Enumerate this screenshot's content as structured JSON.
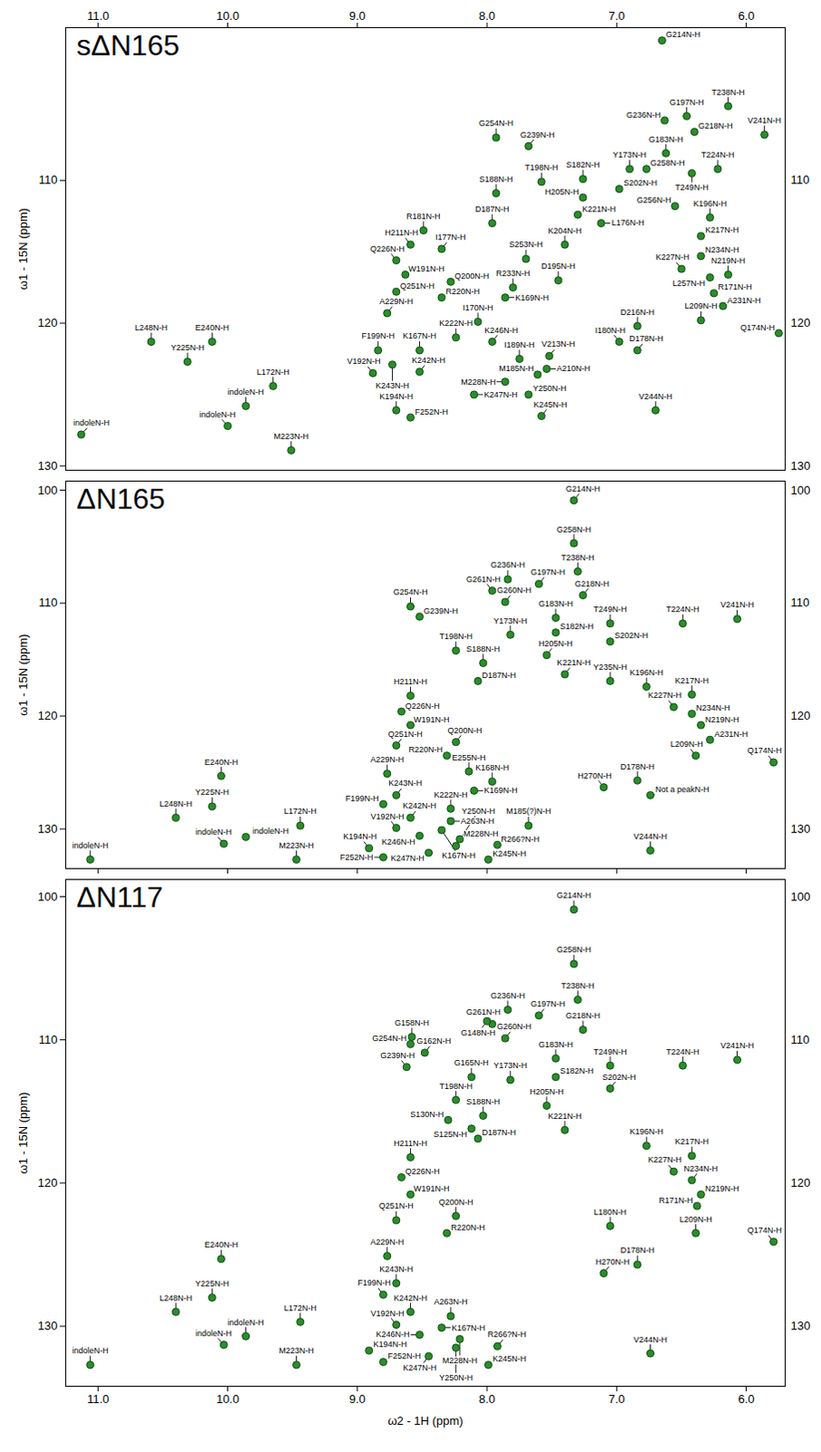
{
  "chart_data": [
    {
      "type": "scatter",
      "title": "sΔN165",
      "ylabel": "ω1 - 15N (ppm)",
      "color": "#2e8b2e",
      "marker": "circle",
      "xlim": [
        11.25,
        5.7
      ],
      "xticks": [
        11,
        10,
        9,
        8,
        7,
        6
      ],
      "ylim": [
        99.3,
        130.3
      ],
      "yticks": [
        110,
        120,
        130
      ],
      "labels": [
        "G214N-H",
        "G197N-H",
        "G236N-H",
        "T238N-H",
        "G218N-H",
        "G254N-H",
        "G239N-H",
        "Y173N-H",
        "G183N-H",
        "G258N-H",
        "T249N-H",
        "T224N-H",
        "V241N-H",
        "T198N-H",
        "S182N-H",
        "S188N-H",
        "H205N-H",
        "S202N-H",
        "D187N-H",
        "K221N-H",
        "L176N-H",
        "K196N-H",
        "K217N-H",
        "R181N-H",
        "H211N-H",
        "I177N-H",
        "Q226N-H",
        "W191N-H",
        "Q251N-H",
        "Q200N-H",
        "R220N-H",
        "N234N-H",
        "N219N-H",
        "R171N-H",
        "L257N-H",
        "A231N-H",
        "L209N-H",
        "Q174N-H",
        "D216N-H",
        "D178N-H",
        "I180N-H",
        "A229N-H",
        "I170N-H",
        "K222N-H",
        "K246N-H",
        "K167N-H",
        "K169N-H",
        "L248N-H",
        "E240N-H",
        "Y225N-H",
        "F199N-H",
        "K243N-H",
        "V192N-H",
        "K242N-H",
        "L172N-H",
        "M185N-H",
        "I189N-H",
        "A210N-H",
        "V213N-H",
        "M228N-H",
        "Y250N-H",
        "K247N-H",
        "K194N-H",
        "F252N-H",
        "K245N-H",
        "V244N-H",
        "indoleN-H",
        "indoleN-H",
        "indoleN-H",
        "M223N-H",
        "K204N-H",
        "S253N-H",
        "G256N-H",
        "R233N-H",
        "D195N-H",
        "K227N-H"
      ],
      "x": [
        6.65,
        6.46,
        6.63,
        6.14,
        6.4,
        7.93,
        7.68,
        6.9,
        6.62,
        6.77,
        6.42,
        6.22,
        5.86,
        7.58,
        7.26,
        7.93,
        7.26,
        6.98,
        7.96,
        7.3,
        7.12,
        6.28,
        6.35,
        8.49,
        8.59,
        8.35,
        8.7,
        8.63,
        8.7,
        8.28,
        8.35,
        6.35,
        6.14,
        6.25,
        6.28,
        6.18,
        6.35,
        5.75,
        6.84,
        6.84,
        6.98,
        8.77,
        8.07,
        8.24,
        7.96,
        8.52,
        7.86,
        10.59,
        10.12,
        10.31,
        8.84,
        8.73,
        8.88,
        8.52,
        9.65,
        7.61,
        7.75,
        7.54,
        7.52,
        7.86,
        7.68,
        8.1,
        8.7,
        8.59,
        7.58,
        6.7,
        9.86,
        10.0,
        11.13,
        9.51,
        7.4,
        7.7,
        6.55,
        7.8,
        7.45,
        6.5
      ],
      "y": [
        100.2,
        105.5,
        105.8,
        104.8,
        106.6,
        107.0,
        107.6,
        109.2,
        108.1,
        109.2,
        109.5,
        109.2,
        106.8,
        110.1,
        109.9,
        110.9,
        111.2,
        110.6,
        113.0,
        112.4,
        113.0,
        112.6,
        113.9,
        113.5,
        114.5,
        114.8,
        115.6,
        116.6,
        117.8,
        117.1,
        118.2,
        115.3,
        116.6,
        117.9,
        116.8,
        118.8,
        119.8,
        120.7,
        120.2,
        121.9,
        121.3,
        119.3,
        119.9,
        121.0,
        121.3,
        121.9,
        118.2,
        121.3,
        121.3,
        122.7,
        121.9,
        122.9,
        123.5,
        123.4,
        124.4,
        123.6,
        122.5,
        123.2,
        122.3,
        124.1,
        125.0,
        125.0,
        126.1,
        126.6,
        126.5,
        126.1,
        125.8,
        127.2,
        127.8,
        128.9,
        114.5,
        115.5,
        111.8,
        117.5,
        117.0,
        116.2
      ]
    },
    {
      "type": "scatter",
      "title": "ΔN165",
      "ylabel": "ω1 - 15N (ppm)",
      "color": "#2e8b2e",
      "marker": "circle",
      "tick_labels": "y",
      "xlim": [
        11.25,
        5.7
      ],
      "xticks": [
        11,
        10,
        9,
        8,
        7,
        6
      ],
      "ylim": [
        99.2,
        133.5
      ],
      "yticks": [
        100,
        110,
        120,
        130
      ],
      "labels": [
        "G214N-H",
        "G258N-H",
        "G236N-H",
        "G261N-H",
        "G197N-H",
        "T238N-H",
        "G260N-H",
        "G218N-H",
        "G254N-H",
        "G239N-H",
        "V241N-H",
        "G183N-H",
        "T249N-H",
        "T224N-H",
        "Y173N-H",
        "S182N-H",
        "S202N-H",
        "T198N-H",
        "S188N-H",
        "H205N-H",
        "D187N-H",
        "K221N-H",
        "K196N-H",
        "Y235N-H",
        "K217N-H",
        "K227N-H",
        "N234N-H",
        "N219N-H",
        "A231N-H",
        "L209N-H",
        "Q174N-H",
        "H211N-H",
        "Q226N-H",
        "W191N-H",
        "Q251N-H",
        "Q200N-H",
        "R220N-H",
        "E255N-H",
        "K168N-H",
        "A229N-H",
        "D178N-H",
        "H270N-H",
        "Not a peakN-H",
        "E240N-H",
        "Y225N-H",
        "L248N-H",
        "K243N-H",
        "F199N-H",
        "K242N-H",
        "V192N-H",
        "K222N-H",
        "K169N-H",
        "A263N-H",
        "L172N-H",
        "K246N-H",
        "K167N-H",
        "M228N-H",
        "Y250N-H",
        "K194N-H",
        "K247N-H",
        "F252N-H",
        "K245N-H",
        "R266?N-H",
        "M185(?)N-H",
        "V244N-H",
        "M223N-H",
        "indoleN-H",
        "indoleN-H",
        "indoleN-H"
      ],
      "x": [
        7.33,
        7.33,
        7.84,
        7.96,
        7.6,
        7.3,
        7.86,
        7.26,
        8.59,
        8.52,
        6.07,
        7.47,
        7.05,
        6.49,
        7.82,
        7.47,
        7.05,
        8.24,
        8.03,
        7.54,
        8.07,
        7.4,
        6.77,
        7.05,
        6.42,
        6.56,
        6.42,
        6.35,
        6.28,
        6.39,
        5.79,
        8.59,
        8.66,
        8.59,
        8.7,
        8.24,
        8.31,
        8.14,
        7.96,
        8.77,
        6.84,
        7.1,
        6.74,
        10.05,
        10.12,
        10.4,
        8.7,
        8.8,
        8.59,
        8.7,
        8.28,
        8.1,
        8.28,
        9.44,
        8.52,
        8.35,
        8.21,
        8.24,
        8.91,
        8.45,
        8.8,
        7.99,
        7.92,
        7.68,
        6.74,
        9.47,
        10.03,
        9.86,
        11.06
      ],
      "y": [
        100.9,
        104.7,
        107.9,
        108.9,
        108.3,
        107.2,
        109.9,
        109.3,
        110.3,
        111.2,
        111.4,
        111.3,
        111.8,
        111.8,
        112.8,
        112.6,
        113.4,
        114.2,
        115.3,
        114.6,
        116.9,
        116.3,
        117.4,
        116.9,
        118.1,
        119.2,
        119.8,
        120.8,
        122.1,
        123.5,
        124.1,
        118.2,
        119.6,
        120.8,
        122.6,
        122.3,
        123.5,
        124.9,
        125.8,
        125.1,
        125.7,
        126.3,
        127.0,
        125.3,
        128.0,
        129.0,
        127.0,
        127.8,
        129.0,
        129.9,
        128.2,
        126.6,
        129.3,
        129.7,
        130.6,
        130.1,
        130.9,
        131.5,
        131.7,
        132.1,
        132.5,
        132.7,
        131.4,
        129.7,
        131.9,
        132.7,
        131.3,
        130.7,
        132.7
      ]
    },
    {
      "type": "scatter",
      "title": "ΔN117",
      "ylabel": "ω1 - 15N (ppm)",
      "xlabel": "ω2 - 1H (ppm)",
      "color": "#2e8b2e",
      "marker": "circle",
      "xlim": [
        11.25,
        5.7
      ],
      "xticks": [
        11,
        10,
        9,
        8,
        7,
        6
      ],
      "ylim": [
        98.8,
        134.2
      ],
      "yticks": [
        100,
        110,
        120,
        130
      ],
      "labels": [
        "G214N-H",
        "G258N-H",
        "G236N-H",
        "G261N-H",
        "G197N-H",
        "T238N-H",
        "G260N-H",
        "G218N-H",
        "G254N-H",
        "G239N-H",
        "V241N-H",
        "G183N-H",
        "T249N-H",
        "T224N-H",
        "Y173N-H",
        "S182N-H",
        "S202N-H",
        "T198N-H",
        "S188N-H",
        "H205N-H",
        "D187N-H",
        "K221N-H",
        "K196N-H",
        "K217N-H",
        "K227N-H",
        "N234N-H",
        "N219N-H",
        "L209N-H",
        "Q174N-H",
        "H211N-H",
        "Q226N-H",
        "W191N-H",
        "Q251N-H",
        "Q200N-H",
        "R220N-H",
        "A229N-H",
        "D178N-H",
        "H270N-H",
        "E240N-H",
        "Y225N-H",
        "L248N-H",
        "F199N-H",
        "K242N-H",
        "V192N-H",
        "K243N-H",
        "A263N-H",
        "L172N-H",
        "K246N-H",
        "K167N-H",
        "M228N-H",
        "Y250N-H",
        "K194N-H",
        "K247N-H",
        "F252N-H",
        "K245N-H",
        "R266?N-H",
        "V244N-H",
        "M223N-H",
        "indoleN-H",
        "indoleN-H",
        "indoleN-H",
        "G148N-H",
        "G158N-H",
        "G162N-H",
        "G165N-H",
        "S130N-H",
        "S125N-H",
        "L180N-H",
        "R171N-H"
      ],
      "x": [
        7.33,
        7.33,
        7.84,
        7.96,
        7.6,
        7.3,
        7.86,
        7.26,
        8.59,
        8.62,
        6.07,
        7.47,
        7.05,
        6.49,
        7.82,
        7.47,
        7.05,
        8.24,
        8.03,
        7.54,
        8.07,
        7.4,
        6.77,
        6.42,
        6.56,
        6.42,
        6.35,
        6.39,
        5.79,
        8.59,
        8.66,
        8.59,
        8.7,
        8.24,
        8.31,
        8.77,
        6.84,
        7.1,
        10.05,
        10.12,
        10.4,
        8.8,
        8.59,
        8.7,
        8.7,
        8.28,
        9.44,
        8.52,
        8.35,
        8.21,
        8.24,
        8.91,
        8.45,
        8.8,
        7.99,
        7.92,
        6.74,
        9.47,
        10.03,
        9.86,
        11.06,
        8.0,
        8.58,
        8.48,
        8.12,
        8.3,
        8.12,
        7.05,
        6.38
      ],
      "y": [
        100.9,
        104.7,
        107.9,
        108.9,
        108.3,
        107.2,
        109.9,
        109.3,
        110.3,
        111.9,
        111.4,
        111.3,
        111.8,
        111.8,
        112.8,
        112.6,
        113.4,
        114.2,
        115.3,
        114.6,
        116.9,
        116.3,
        117.4,
        118.1,
        119.2,
        119.8,
        120.8,
        123.5,
        124.1,
        118.2,
        119.6,
        120.8,
        122.6,
        122.3,
        123.5,
        125.1,
        125.7,
        126.3,
        125.3,
        128.0,
        129.0,
        127.8,
        129.0,
        129.9,
        127.0,
        129.3,
        129.7,
        130.6,
        130.1,
        130.9,
        131.5,
        131.7,
        132.1,
        132.5,
        132.7,
        131.4,
        131.9,
        132.7,
        131.3,
        130.7,
        132.7,
        108.7,
        109.8,
        110.9,
        112.6,
        115.6,
        116.2,
        123.0,
        121.6
      ]
    }
  ]
}
